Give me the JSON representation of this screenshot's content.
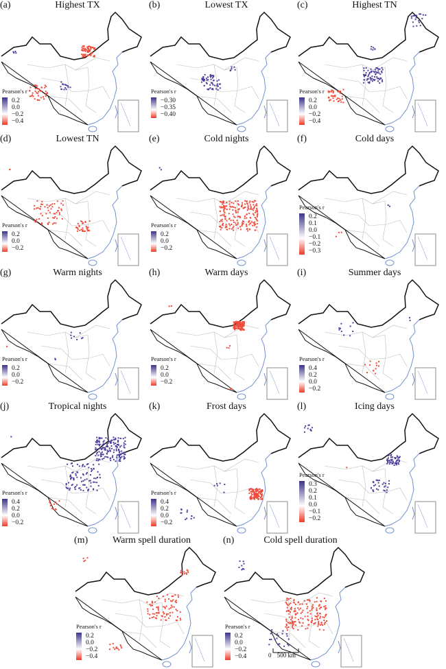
{
  "legend_title": "Pearson's r",
  "panels": [
    {
      "tag": "(a)",
      "title": "Highest TX",
      "ticks": [
        "0.2",
        "0.0",
        "−0.2",
        "−0.4"
      ]
    },
    {
      "tag": "(b)",
      "title": "Lowest TX",
      "ticks": [
        "−0.30",
        "−0.35",
        "−0.40"
      ]
    },
    {
      "tag": "(c)",
      "title": "Highest TN",
      "ticks": [
        "0.2",
        "0.0",
        "−0.2",
        "−0.4"
      ]
    },
    {
      "tag": "(d)",
      "title": "Lowest TN",
      "ticks": [
        "0.2",
        "0.0",
        "−0.2"
      ]
    },
    {
      "tag": "(e)",
      "title": "Cold nights",
      "ticks": [
        "0.2",
        "0.0",
        "−0.2"
      ]
    },
    {
      "tag": "(f)",
      "title": "Cold days",
      "ticks": [
        "0.2",
        "0.1",
        "0.0",
        "−0.1",
        "−0.2",
        "−0.3"
      ]
    },
    {
      "tag": "(g)",
      "title": "Warm nights",
      "ticks": [
        "0.2",
        "0.0",
        "−0.2"
      ]
    },
    {
      "tag": "(h)",
      "title": "Warm days",
      "ticks": [
        "0.2",
        "0.0",
        "−0.2"
      ]
    },
    {
      "tag": "(i)",
      "title": "Summer days",
      "ticks": [
        "0.4",
        "0.2",
        "0.0",
        "−0.2"
      ]
    },
    {
      "tag": "(j)",
      "title": "Tropical nights",
      "ticks": [
        "0.4",
        "0.2",
        "0.0",
        "−0.2"
      ]
    },
    {
      "tag": "(k)",
      "title": "Frost days",
      "ticks": [
        "0.4",
        "0.2",
        "0.0",
        "−0.2"
      ]
    },
    {
      "tag": "(l)",
      "title": "Icing days",
      "ticks": [
        "0.3",
        "0.2",
        "0.1",
        "0.0",
        "−0.1",
        "−0.2"
      ]
    },
    {
      "tag": "(m)",
      "title": "Warm spell duration",
      "ticks": [
        "0.2",
        "0.0",
        "−0.2",
        "−0.4"
      ]
    },
    {
      "tag": "(n)",
      "title": "Cold spell duration",
      "ticks": [
        "0.2",
        "0.0",
        "−0.2",
        "−0.4"
      ]
    }
  ],
  "scale_bar": {
    "zero": "0",
    "label": "500 km"
  },
  "colors": {
    "positive": "#4a3f9a",
    "negative": "#ee4b3a",
    "coast": "#6f8fcf",
    "border": "#111111",
    "province": "#bdbdbd"
  }
}
